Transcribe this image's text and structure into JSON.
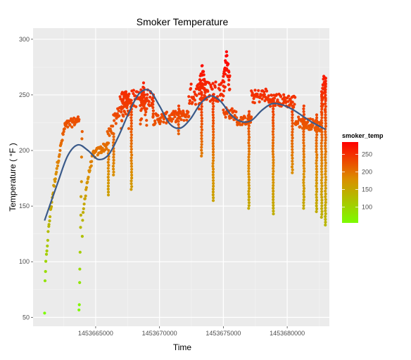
{
  "chart_data": {
    "type": "scatter",
    "title": "Smoker Temperature",
    "xlabel": "Time",
    "ylabel": "Temperature ( °F )",
    "xlim": [
      1453660100,
      1453683300
    ],
    "ylim": [
      42,
      310
    ],
    "x_ticks": [
      1453665000,
      1453670000,
      1453675000,
      1453680000
    ],
    "x_tick_labels": [
      "1453665000",
      "1453670000",
      "1453675000",
      "1453680000"
    ],
    "y_ticks": [
      50,
      100,
      150,
      200,
      250,
      300
    ],
    "y_tick_labels": [
      "50",
      "100",
      "150",
      "200",
      "250",
      "300"
    ],
    "grid": true,
    "legend": {
      "title": "smoker_temp",
      "placement": "right",
      "range": [
        55,
        285
      ],
      "ticks": [
        100,
        150,
        200,
        250
      ],
      "tick_labels": [
        "100",
        "150",
        "200",
        "250"
      ],
      "colors": [
        "#7CFC00",
        "#FF0000"
      ]
    },
    "point_series": {
      "name": "smoker_temp",
      "segments": [
        {
          "x0": 1453661000,
          "x1": 1453662600,
          "y0": 55,
          "y1": 222,
          "shape": "sqrt",
          "noise": 3
        },
        {
          "x0": 1453662600,
          "x1": 1453663700,
          "y0": 222,
          "y1": 228,
          "shape": "linear",
          "noise": 4
        },
        {
          "x0": 1453663700,
          "x1": 1453663950,
          "y0": 52,
          "y1": 220,
          "shape": "linear",
          "noise": 6
        },
        {
          "x0": 1453663950,
          "x1": 1453664800,
          "y0": 120,
          "y1": 196,
          "shape": "sqrt",
          "noise": 3
        },
        {
          "x0": 1453664800,
          "x1": 1453665900,
          "y0": 196,
          "y1": 205,
          "shape": "linear",
          "noise": 4
        },
        {
          "x0": 1453665900,
          "x1": 1453667200,
          "y0": 208,
          "y1": 250,
          "shape": "linear",
          "noise": 8
        },
        {
          "x0": 1453667200,
          "x1": 1453669500,
          "y0": 246,
          "y1": 248,
          "shape": "linear",
          "noise": 8
        },
        {
          "x0": 1453669500,
          "x1": 1453672300,
          "y0": 228,
          "y1": 232,
          "shape": "linear",
          "noise": 5
        },
        {
          "x0": 1453672300,
          "x1": 1453675000,
          "y0": 250,
          "y1": 255,
          "shape": "linear",
          "noise": 10
        },
        {
          "x0": 1453675000,
          "x1": 1453676000,
          "y0": 235,
          "y1": 232,
          "shape": "linear",
          "noise": 5
        },
        {
          "x0": 1453676000,
          "x1": 1453677200,
          "y0": 226,
          "y1": 228,
          "shape": "linear",
          "noise": 4
        },
        {
          "x0": 1453677200,
          "x1": 1453678400,
          "y0": 248,
          "y1": 250,
          "shape": "linear",
          "noise": 6
        },
        {
          "x0": 1453678400,
          "x1": 1453680600,
          "y0": 246,
          "y1": 244,
          "shape": "linear",
          "noise": 6
        },
        {
          "x0": 1453680600,
          "x1": 1453682700,
          "y0": 226,
          "y1": 222,
          "shape": "linear",
          "noise": 5
        },
        {
          "x0": 1453682700,
          "x1": 1453683000,
          "y0": 250,
          "y1": 262,
          "shape": "linear",
          "noise": 5
        }
      ],
      "dips": [
        {
          "x": 1453666000,
          "min": 160,
          "top": 200
        },
        {
          "x": 1453666400,
          "min": 178,
          "top": 215
        },
        {
          "x": 1453667800,
          "min": 165,
          "top": 245
        },
        {
          "x": 1453669500,
          "min": 230,
          "top": 250
        },
        {
          "x": 1453671500,
          "min": 215,
          "top": 240
        },
        {
          "x": 1453673300,
          "min": 195,
          "top": 250
        },
        {
          "x": 1453674200,
          "min": 155,
          "top": 250
        },
        {
          "x": 1453677000,
          "min": 148,
          "top": 235
        },
        {
          "x": 1453678900,
          "min": 143,
          "top": 245
        },
        {
          "x": 1453680400,
          "min": 180,
          "top": 240
        },
        {
          "x": 1453681300,
          "min": 148,
          "top": 240
        },
        {
          "x": 1453682300,
          "min": 145,
          "top": 232
        },
        {
          "x": 1453682700,
          "min": 140,
          "top": 250
        },
        {
          "x": 1453683000,
          "min": 133,
          "top": 265
        }
      ],
      "spikes": [
        {
          "x0": 1453667000,
          "x1": 1453667600,
          "peak": 255
        },
        {
          "x0": 1453668500,
          "x1": 1453669000,
          "peak": 258
        },
        {
          "x0": 1453673100,
          "x1": 1453673600,
          "peak": 275
        },
        {
          "x0": 1453675000,
          "x1": 1453675500,
          "peak": 285
        },
        {
          "x0": 1453682700,
          "x1": 1453683000,
          "peak": 268
        }
      ]
    },
    "smooth_series": {
      "name": "trend",
      "color": "#3a5a8a",
      "x": [
        1453661000,
        1453662000,
        1453662800,
        1453663600,
        1453664400,
        1453665200,
        1453666000,
        1453666800,
        1453667600,
        1453668400,
        1453669200,
        1453670000,
        1453670800,
        1453671600,
        1453672400,
        1453673200,
        1453674000,
        1453674800,
        1453675600,
        1453676400,
        1453677200,
        1453678000,
        1453678800,
        1453679600,
        1453680400,
        1453681200,
        1453682000,
        1453683000
      ],
      "y": [
        137,
        170,
        195,
        205,
        200,
        192,
        196,
        213,
        234,
        251,
        254,
        240,
        224,
        220,
        228,
        242,
        249,
        244,
        232,
        226,
        227,
        236,
        242,
        241,
        237,
        231,
        225,
        219
      ]
    }
  }
}
